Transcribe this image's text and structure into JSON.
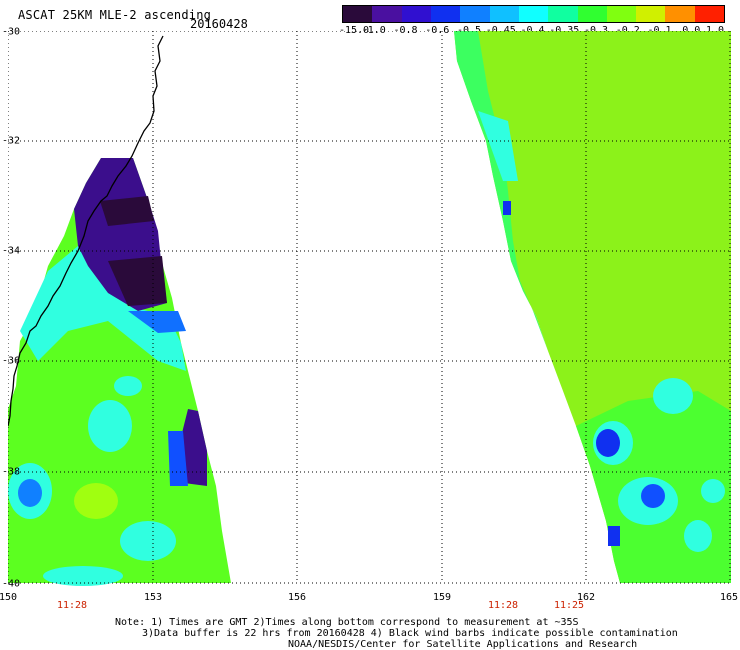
{
  "title": "ASCAT 25KM MLE-2 ascending",
  "date": "20160428",
  "colorbar": {
    "labels": [
      "-15.0",
      "-1.0",
      "-0.8",
      "-0.6",
      "-0.5",
      "-0.45",
      "-0.4",
      "-0.35",
      "-0.3",
      "-0.2",
      "-0.1",
      "0.0",
      "1.0"
    ],
    "colors": [
      "#2a0a3a",
      "#4a10a0",
      "#3010d0",
      "#1030f0",
      "#1080ff",
      "#10c0ff",
      "#10ffff",
      "#10ffa0",
      "#30ff30",
      "#80ff10",
      "#d0f000",
      "#ff9000",
      "#ff2000"
    ]
  },
  "axes": {
    "lat_labels": [
      "-30",
      "-32",
      "-34",
      "-36",
      "-38",
      "-40"
    ],
    "lon_labels": [
      "150",
      "153",
      "156",
      "159",
      "162",
      "165"
    ]
  },
  "times": [
    "11:28",
    "11:28",
    "11:25"
  ],
  "notes": [
    "Note: 1) Times are GMT 2)Times along bottom correspond to measurement at ~35S",
    "3)Data buffer is 22 hrs from 20160428 4) Black wind barbs indicate possible contamination",
    "NOAA/NESDIS/Center for Satellite Applications and Research"
  ]
}
